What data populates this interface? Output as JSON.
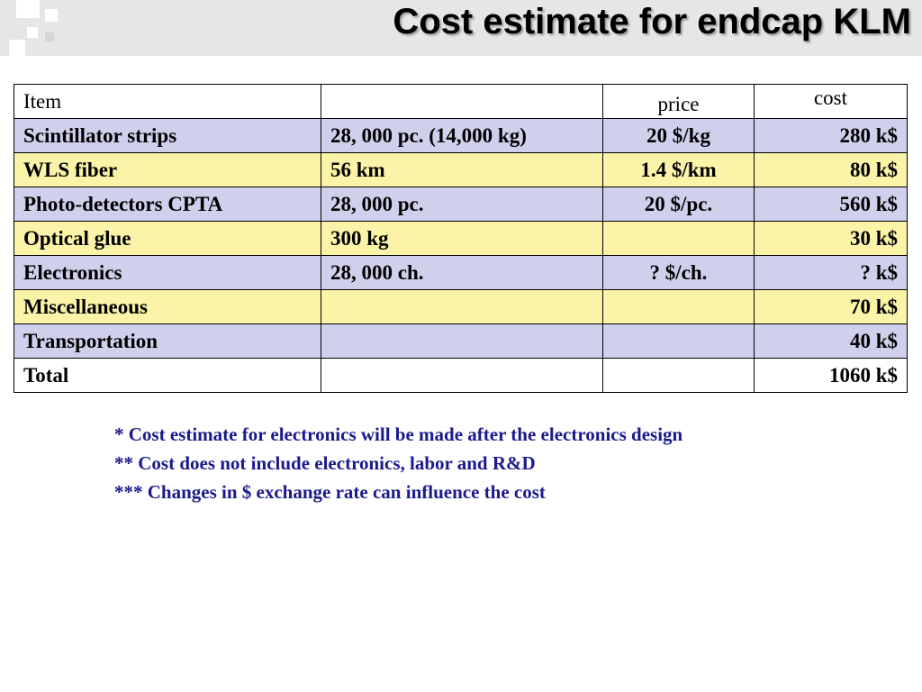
{
  "slide": {
    "title": "Cost estimate for endcap KLM"
  },
  "table": {
    "headers": [
      "Item",
      "",
      "price",
      "cost"
    ],
    "rows": [
      {
        "item": "Scintillator strips",
        "quantity": "28, 000 pc. (14,000 kg)",
        "price": "20 $/kg",
        "cost": "280 k$"
      },
      {
        "item": "WLS fiber",
        "quantity": "56 km",
        "price": "1.4 $/km",
        "cost": "80 k$"
      },
      {
        "item": "Photo-detectors CPTA",
        "quantity": "28, 000 pc.",
        "price": "20 $/pc.",
        "cost": "560 k$"
      },
      {
        "item": "Optical glue",
        "quantity": "300 kg",
        "price": "",
        "cost": "30 k$"
      },
      {
        "item": "Electronics",
        "quantity": "28, 000 ch.",
        "price": "? $/ch.",
        "cost": "? k$"
      },
      {
        "item": "Miscellaneous",
        "quantity": "",
        "price": "",
        "cost": "70 k$"
      },
      {
        "item": "Transportation",
        "quantity": "",
        "price": "",
        "cost": "40 k$"
      },
      {
        "item": "Total",
        "quantity": "",
        "price": "",
        "cost": "1060 k$"
      }
    ],
    "row_colors": {
      "lavender": "#d0d0ec",
      "yellow": "#fbf4a8",
      "white": "#ffffff"
    }
  },
  "notes": [
    "* Cost estimate for electronics will be made after the electronics design",
    "** Cost does not include electronics, labor and R&D",
    "*** Changes in $ exchange rate can influence the cost"
  ],
  "colors": {
    "title_band": "#e6e6e6",
    "notes_text": "#1a1a8c"
  }
}
